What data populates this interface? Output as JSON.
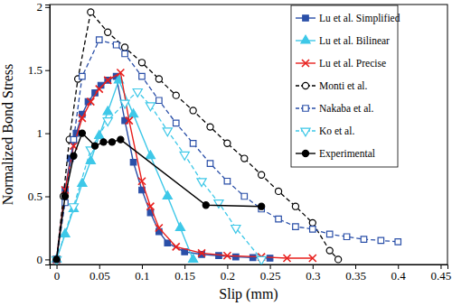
{
  "chart_data": {
    "type": "line",
    "x_label": "Slip (mm)",
    "y_label": "Normalized Bond Stress",
    "xlim": [
      -0.008,
      0.458
    ],
    "ylim": [
      -0.04,
      2.02
    ],
    "xticks": [
      0,
      0.05,
      0.1,
      0.15,
      0.2,
      0.25,
      0.3,
      0.35,
      0.4,
      0.45
    ],
    "yticks": [
      0,
      0.5,
      1,
      1.5,
      2
    ],
    "grid": false,
    "legend": "upper-right",
    "series": [
      {
        "name": "Lu et al. Simplified",
        "color": "#2a4fa8",
        "marker": "square",
        "line_style": "solid",
        "x": [
          0,
          0.01,
          0.016,
          0.023,
          0.03,
          0.037,
          0.045,
          0.052,
          0.06,
          0.07,
          0.08,
          0.09,
          0.1,
          0.11,
          0.12,
          0.13,
          0.15,
          0.17,
          0.19,
          0.21,
          0.23,
          0.25
        ],
        "values": [
          0,
          0.55,
          0.8,
          1.0,
          1.15,
          1.25,
          1.32,
          1.38,
          1.42,
          1.45,
          1.1,
          0.77,
          0.55,
          0.37,
          0.22,
          0.13,
          0.06,
          0.04,
          0.03,
          0.02,
          0.015,
          0.01
        ]
      },
      {
        "name": "Lu et al. Bilinear",
        "color": "#3ec8e8",
        "marker": "triangle",
        "line_style": "solid",
        "x": [
          0,
          0.01,
          0.02,
          0.03,
          0.04,
          0.05,
          0.06,
          0.073,
          0.09,
          0.11,
          0.13,
          0.145,
          0.16
        ],
        "values": [
          0,
          0.2,
          0.4,
          0.6,
          0.78,
          0.98,
          1.17,
          1.42,
          1.15,
          0.82,
          0.5,
          0.25,
          0
        ]
      },
      {
        "name": "Lu et al. Precise",
        "color": "#e8201e",
        "marker": "x",
        "line_style": "solid",
        "x": [
          0,
          0.01,
          0.02,
          0.03,
          0.04,
          0.05,
          0.06,
          0.075,
          0.085,
          0.1,
          0.11,
          0.12,
          0.14,
          0.17,
          0.2,
          0.24,
          0.27,
          0.3
        ],
        "values": [
          0,
          0.55,
          0.9,
          1.12,
          1.25,
          1.35,
          1.42,
          1.48,
          1.1,
          0.62,
          0.42,
          0.25,
          0.1,
          0.05,
          0.03,
          0.02,
          0.01,
          0.01
        ]
      },
      {
        "name": "Monti et al.",
        "color": "#000000",
        "marker": "circle-open",
        "line_style": "dashed",
        "x": [
          0,
          0.008,
          0.015,
          0.025,
          0.04,
          0.06,
          0.08,
          0.1,
          0.12,
          0.14,
          0.16,
          0.18,
          0.2,
          0.22,
          0.24,
          0.26,
          0.28,
          0.3,
          0.32,
          0.33
        ],
        "values": [
          0,
          0.5,
          0.95,
          1.43,
          1.96,
          1.8,
          1.68,
          1.56,
          1.43,
          1.3,
          1.18,
          1.05,
          0.92,
          0.8,
          0.67,
          0.54,
          0.42,
          0.29,
          0.07,
          0
        ]
      },
      {
        "name": "Nakaba et al.",
        "color": "#2a4fa8",
        "marker": "square-open",
        "line_style": "dashed",
        "x": [
          0,
          0.01,
          0.02,
          0.03,
          0.05,
          0.07,
          0.08,
          0.1,
          0.12,
          0.14,
          0.16,
          0.18,
          0.2,
          0.22,
          0.24,
          0.26,
          0.28,
          0.3,
          0.32,
          0.34,
          0.36,
          0.38,
          0.4
        ],
        "values": [
          0,
          0.45,
          0.95,
          1.45,
          1.74,
          1.7,
          1.63,
          1.45,
          1.26,
          1.08,
          0.92,
          0.76,
          0.62,
          0.5,
          0.4,
          0.32,
          0.26,
          0.24,
          0.2,
          0.18,
          0.16,
          0.15,
          0.14
        ]
      },
      {
        "name": "Ko et al.",
        "color": "#3ec8e8",
        "marker": "triangle-down-open",
        "line_style": "dashed",
        "x": [
          0,
          0.02,
          0.04,
          0.06,
          0.08,
          0.095,
          0.11,
          0.13,
          0.15,
          0.17,
          0.19,
          0.21,
          0.24
        ],
        "values": [
          0,
          0.42,
          0.87,
          1.1,
          1.24,
          1.33,
          1.22,
          1.02,
          0.83,
          0.62,
          0.45,
          0.25,
          0
        ]
      },
      {
        "name": "Experimental",
        "color": "#000000",
        "marker": "circle",
        "line_style": "solid",
        "x": [
          0,
          0.01,
          0.02,
          0.03,
          0.045,
          0.055,
          0.065,
          0.075,
          0.175,
          0.24
        ],
        "values": [
          0,
          0.5,
          0.82,
          1.0,
          0.9,
          0.93,
          0.93,
          0.95,
          0.43,
          0.42
        ]
      }
    ]
  }
}
